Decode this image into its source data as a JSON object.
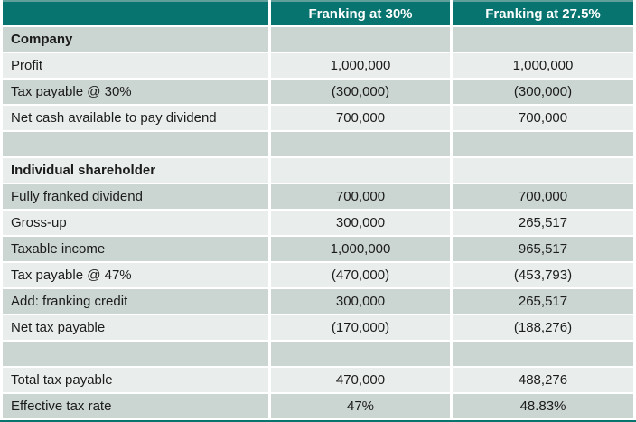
{
  "colors": {
    "header_teal": "#087470",
    "header_top_edge": "#5fa09c",
    "row_dark": "#cbd5d2",
    "row_light": "#e9eeec",
    "separator_white": "#ffffff",
    "text": "#1c1c1c",
    "header_text": "#ffffff"
  },
  "chart_data": {
    "type": "table",
    "columns": [
      "",
      "Franking at 30%",
      "Franking at 27.5%"
    ],
    "rows": [
      {
        "label": "Company",
        "franking_30": "",
        "franking_275": "",
        "section": true
      },
      {
        "label": "Profit",
        "franking_30": "1,000,000",
        "franking_275": "1,000,000"
      },
      {
        "label": "Tax payable @ 30%",
        "franking_30": "(300,000)",
        "franking_275": "(300,000)"
      },
      {
        "label": "Net cash available to pay dividend",
        "franking_30": "700,000",
        "franking_275": "700,000"
      },
      {
        "label": "",
        "franking_30": "",
        "franking_275": "",
        "empty": true
      },
      {
        "label": "Individual shareholder",
        "franking_30": "",
        "franking_275": "",
        "section": true
      },
      {
        "label": "Fully franked dividend",
        "franking_30": "700,000",
        "franking_275": "700,000"
      },
      {
        "label": "Gross-up",
        "franking_30": "300,000",
        "franking_275": "265,517"
      },
      {
        "label": "Taxable income",
        "franking_30": "1,000,000",
        "franking_275": "965,517"
      },
      {
        "label": "Tax payable @ 47%",
        "franking_30": "(470,000)",
        "franking_275": "(453,793)"
      },
      {
        "label": "Add: franking credit",
        "franking_30": "300,000",
        "franking_275": "265,517"
      },
      {
        "label": "Net tax payable",
        "franking_30": "(170,000)",
        "franking_275": "(188,276)"
      },
      {
        "label": "",
        "franking_30": "",
        "franking_275": "",
        "empty": true
      },
      {
        "label": "Total tax payable",
        "franking_30": "470,000",
        "franking_275": "488,276"
      },
      {
        "label": "Effective tax rate",
        "franking_30": "47%",
        "franking_275": "48.83%"
      }
    ]
  }
}
